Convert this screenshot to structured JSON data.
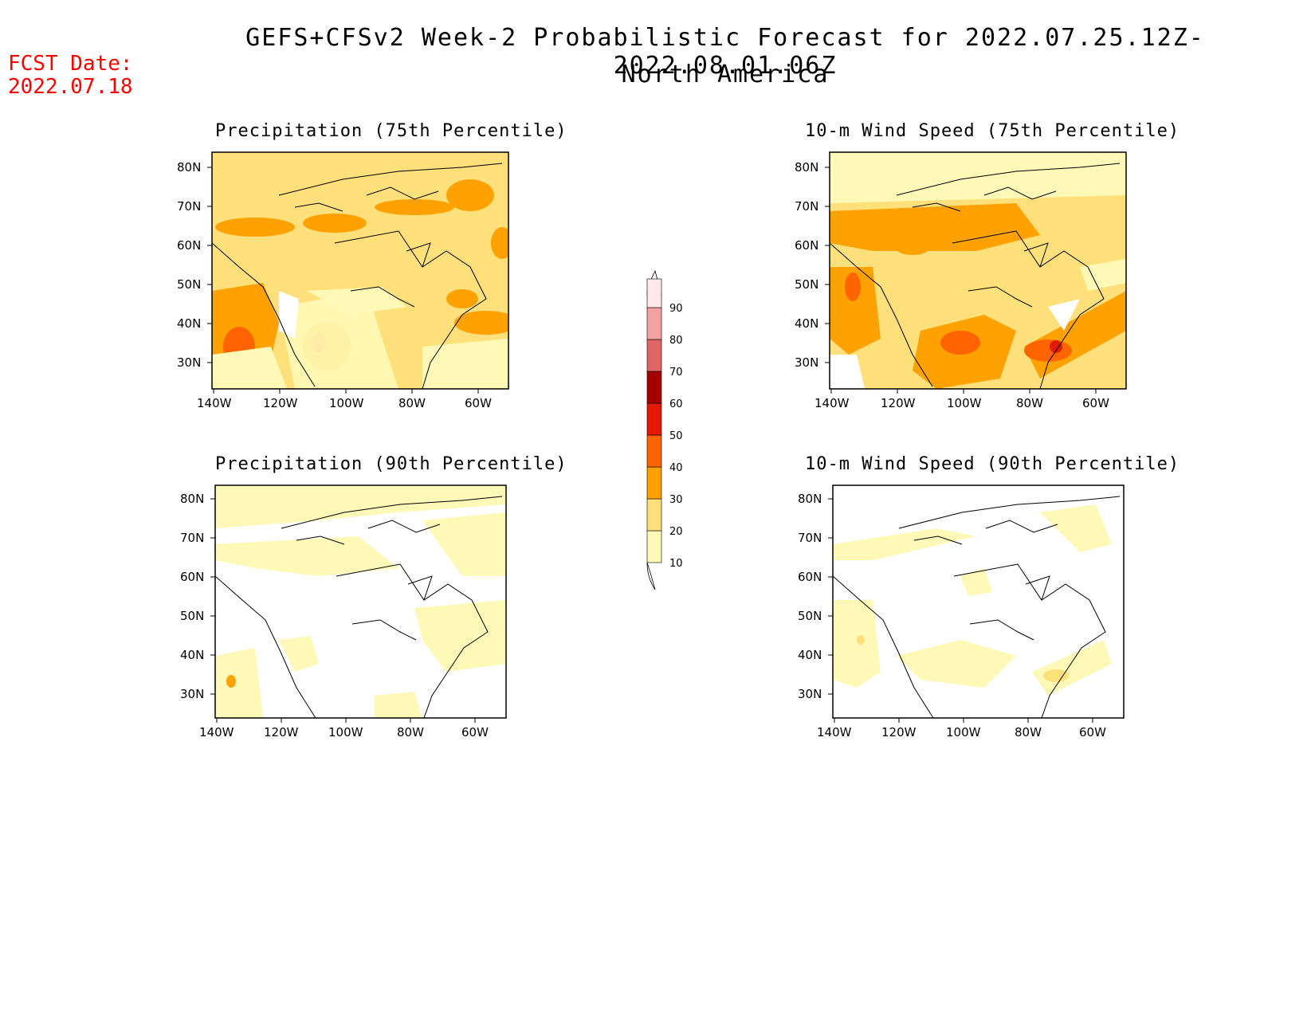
{
  "header": {
    "title": "GEFS+CFSv2 Week-2 Probabilistic Forecast for 2022.07.25.12Z-2022.08.01.06Z",
    "subtitle": "North America",
    "fcst_label": "FCST Date:",
    "fcst_date": "2022.07.18",
    "fcst_color": "#ff0000"
  },
  "panels": [
    {
      "title": "Precipitation (75th Percentile)",
      "variable": "precipitation",
      "percentile": 75
    },
    {
      "title": "10-m Wind Speed (75th Percentile)",
      "variable": "wind_speed",
      "percentile": 75
    },
    {
      "title": "Precipitation (90th Percentile)",
      "variable": "precipitation",
      "percentile": 90
    },
    {
      "title": "10-m Wind Speed (90th Percentile)",
      "variable": "wind_speed",
      "percentile": 90
    }
  ],
  "axes": {
    "lat_ticks": [
      "30N",
      "40N",
      "50N",
      "60N",
      "70N",
      "80N"
    ],
    "lon_ticks": [
      "140W",
      "120W",
      "100W",
      "80W",
      "60W"
    ]
  },
  "colorbar": {
    "levels": [
      "10",
      "20",
      "30",
      "40",
      "50",
      "60",
      "70",
      "80",
      "90"
    ],
    "colors": [
      "#fff9b8",
      "#ffe07a",
      "#ffa100",
      "#ff6400",
      "#e11a00",
      "#a50000",
      "#e06666",
      "#f4a1a1",
      "#ffe8e8"
    ]
  }
}
